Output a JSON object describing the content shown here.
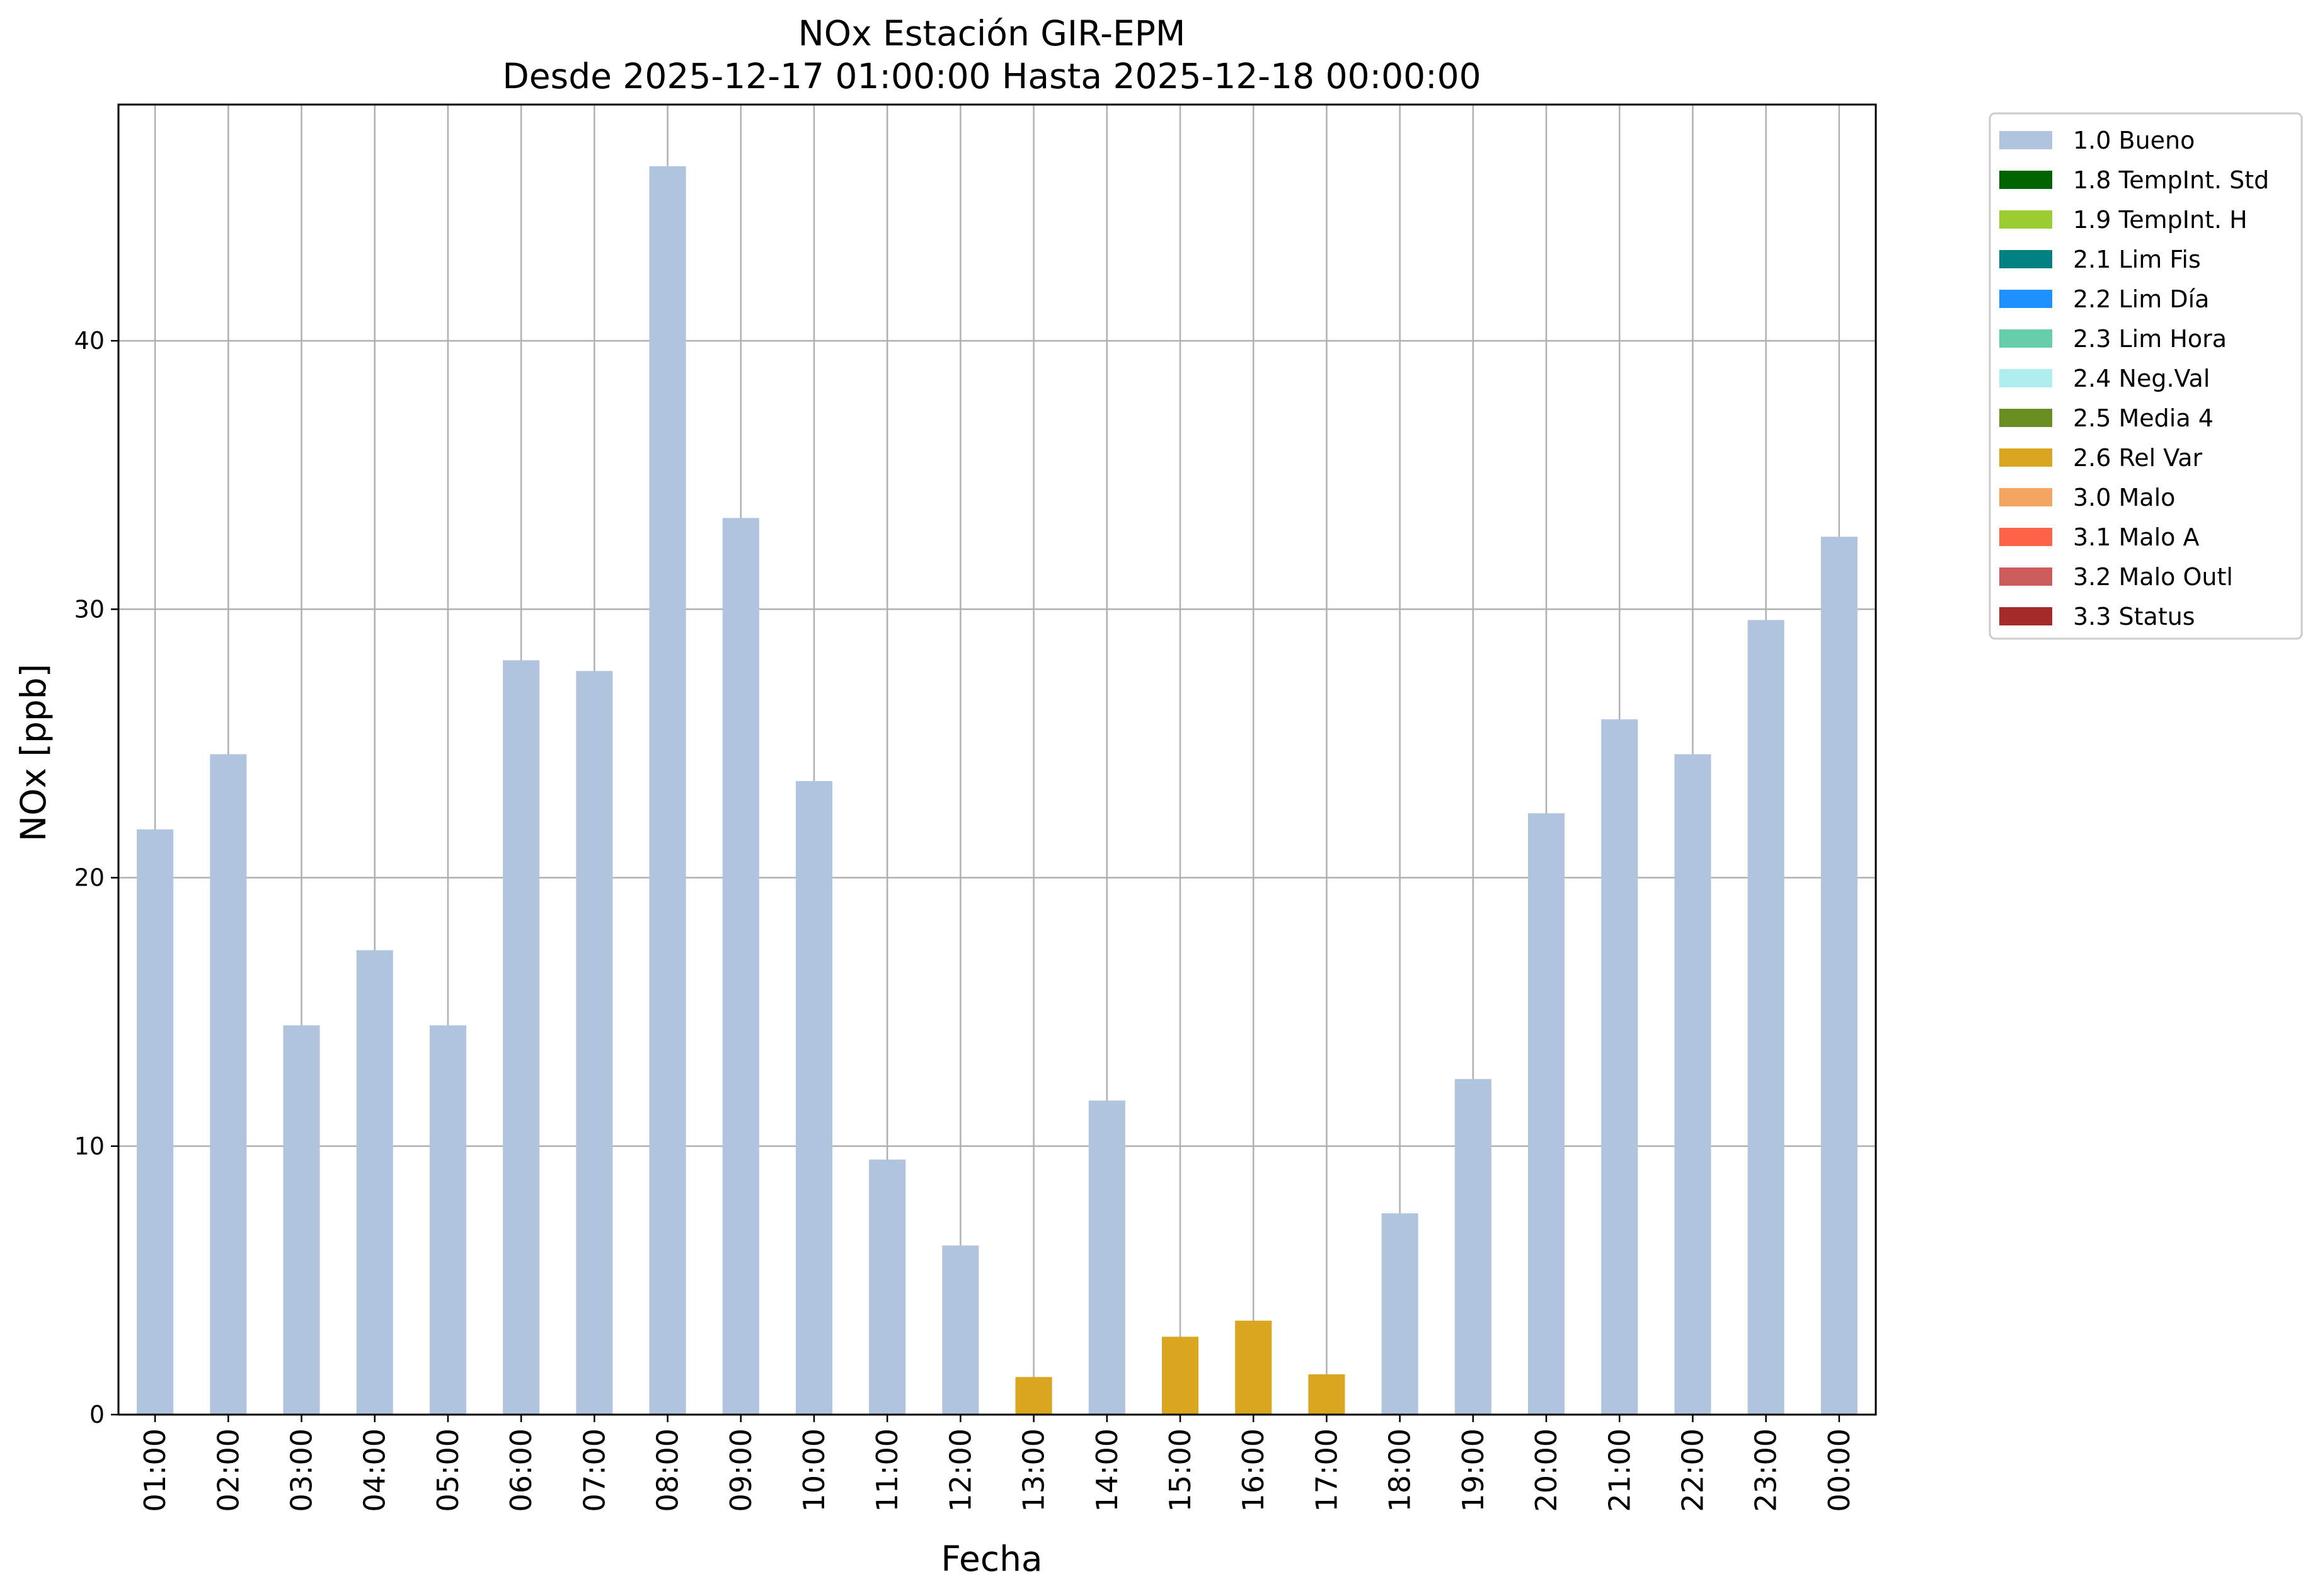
{
  "chart_data": {
    "type": "bar",
    "title": "NOx Estación GIR-EPM",
    "subtitle": "Desde 2025-12-17 01:00:00 Hasta 2025-12-18 00:00:00",
    "xlabel": "Fecha",
    "ylabel": "NOx [ppb]",
    "ylim": [
      0,
      48.8
    ],
    "yticks": [
      0,
      10,
      20,
      30,
      40
    ],
    "grid": true,
    "legend_position": "outside-top-right",
    "categories": [
      "01:00",
      "02:00",
      "03:00",
      "04:00",
      "05:00",
      "06:00",
      "07:00",
      "08:00",
      "09:00",
      "10:00",
      "11:00",
      "12:00",
      "13:00",
      "14:00",
      "15:00",
      "16:00",
      "17:00",
      "18:00",
      "19:00",
      "20:00",
      "21:00",
      "22:00",
      "23:00",
      "00:00"
    ],
    "values": [
      21.8,
      24.6,
      14.5,
      17.3,
      14.5,
      28.1,
      27.7,
      46.5,
      33.4,
      23.6,
      9.5,
      6.3,
      1.4,
      11.7,
      2.9,
      3.5,
      1.5,
      7.5,
      12.5,
      22.4,
      25.9,
      24.6,
      29.6,
      32.7
    ],
    "flags": [
      "1.0 Bueno",
      "1.0 Bueno",
      "1.0 Bueno",
      "1.0 Bueno",
      "1.0 Bueno",
      "1.0 Bueno",
      "1.0 Bueno",
      "1.0 Bueno",
      "1.0 Bueno",
      "1.0 Bueno",
      "1.0 Bueno",
      "1.0 Bueno",
      "2.6 Rel Var",
      "1.0 Bueno",
      "2.6 Rel Var",
      "2.6 Rel Var",
      "2.6 Rel Var",
      "1.0 Bueno",
      "1.0 Bueno",
      "1.0 Bueno",
      "1.0 Bueno",
      "1.0 Bueno",
      "1.0 Bueno",
      "1.0 Bueno"
    ],
    "legend": [
      {
        "label": "1.0 Bueno",
        "color": "#b0c4de"
      },
      {
        "label": "1.8 TempInt. Std",
        "color": "#006400"
      },
      {
        "label": "1.9 TempInt. H",
        "color": "#9acd32"
      },
      {
        "label": "2.1 Lim Fis",
        "color": "#008080"
      },
      {
        "label": "2.2 Lim Día",
        "color": "#1e90ff"
      },
      {
        "label": "2.3 Lim Hora",
        "color": "#66cdaa"
      },
      {
        "label": "2.4 Neg.Val",
        "color": "#afeeee"
      },
      {
        "label": "2.5 Media 4",
        "color": "#6b8e23"
      },
      {
        "label": "2.6 Rel Var",
        "color": "#daa520"
      },
      {
        "label": "3.0 Malo",
        "color": "#f4a460"
      },
      {
        "label": "3.1 Malo A",
        "color": "#ff6347"
      },
      {
        "label": "3.2 Malo Outl",
        "color": "#cd5c5c"
      },
      {
        "label": "3.3 Status",
        "color": "#a52a2a"
      }
    ]
  }
}
